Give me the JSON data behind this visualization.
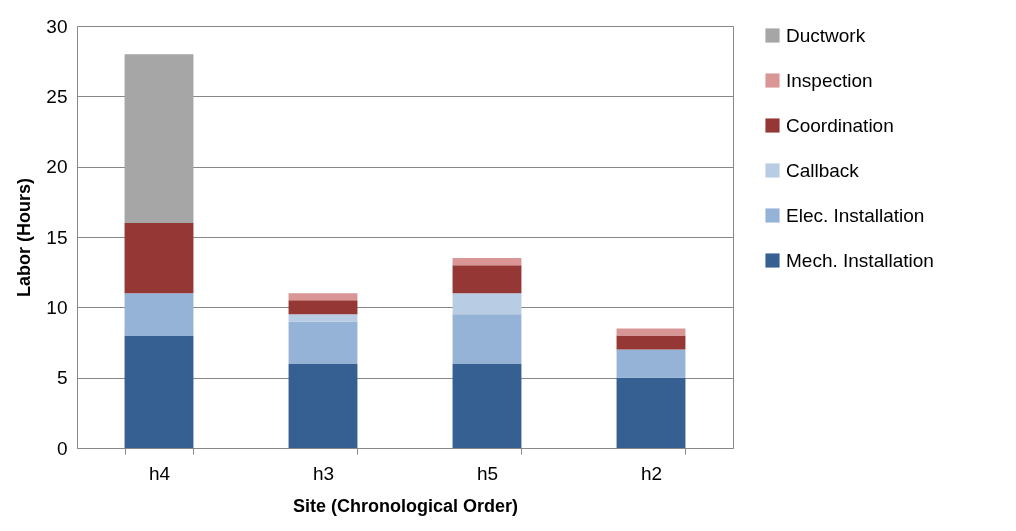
{
  "chart_data": {
    "type": "bar",
    "stacked": true,
    "xlabel": "Site (Chronological Order)",
    "ylabel": "Labor (Hours)",
    "categories": [
      "h4",
      "h3",
      "h5",
      "h2"
    ],
    "series": [
      {
        "name": "Mech. Installation",
        "color": "#366092",
        "values": [
          8,
          6,
          6,
          5
        ]
      },
      {
        "name": "Elec. Installation",
        "color": "#95b3d7",
        "values": [
          3,
          3,
          3.5,
          2
        ]
      },
      {
        "name": "Callback",
        "color": "#b8cce4",
        "values": [
          0,
          0.5,
          1.5,
          0
        ]
      },
      {
        "name": "Coordination",
        "color": "#953735",
        "values": [
          5,
          1,
          2,
          1
        ]
      },
      {
        "name": "Inspection",
        "color": "#d99694",
        "values": [
          0,
          0.5,
          0.5,
          0.5
        ]
      },
      {
        "name": "Ductwork",
        "color": "#a6a6a6",
        "values": [
          12,
          0,
          0,
          0
        ]
      }
    ],
    "ylim": [
      0,
      30
    ],
    "yticks": [
      0,
      5,
      10,
      15,
      20,
      25,
      30
    ],
    "grid": "y",
    "legend": "right"
  }
}
